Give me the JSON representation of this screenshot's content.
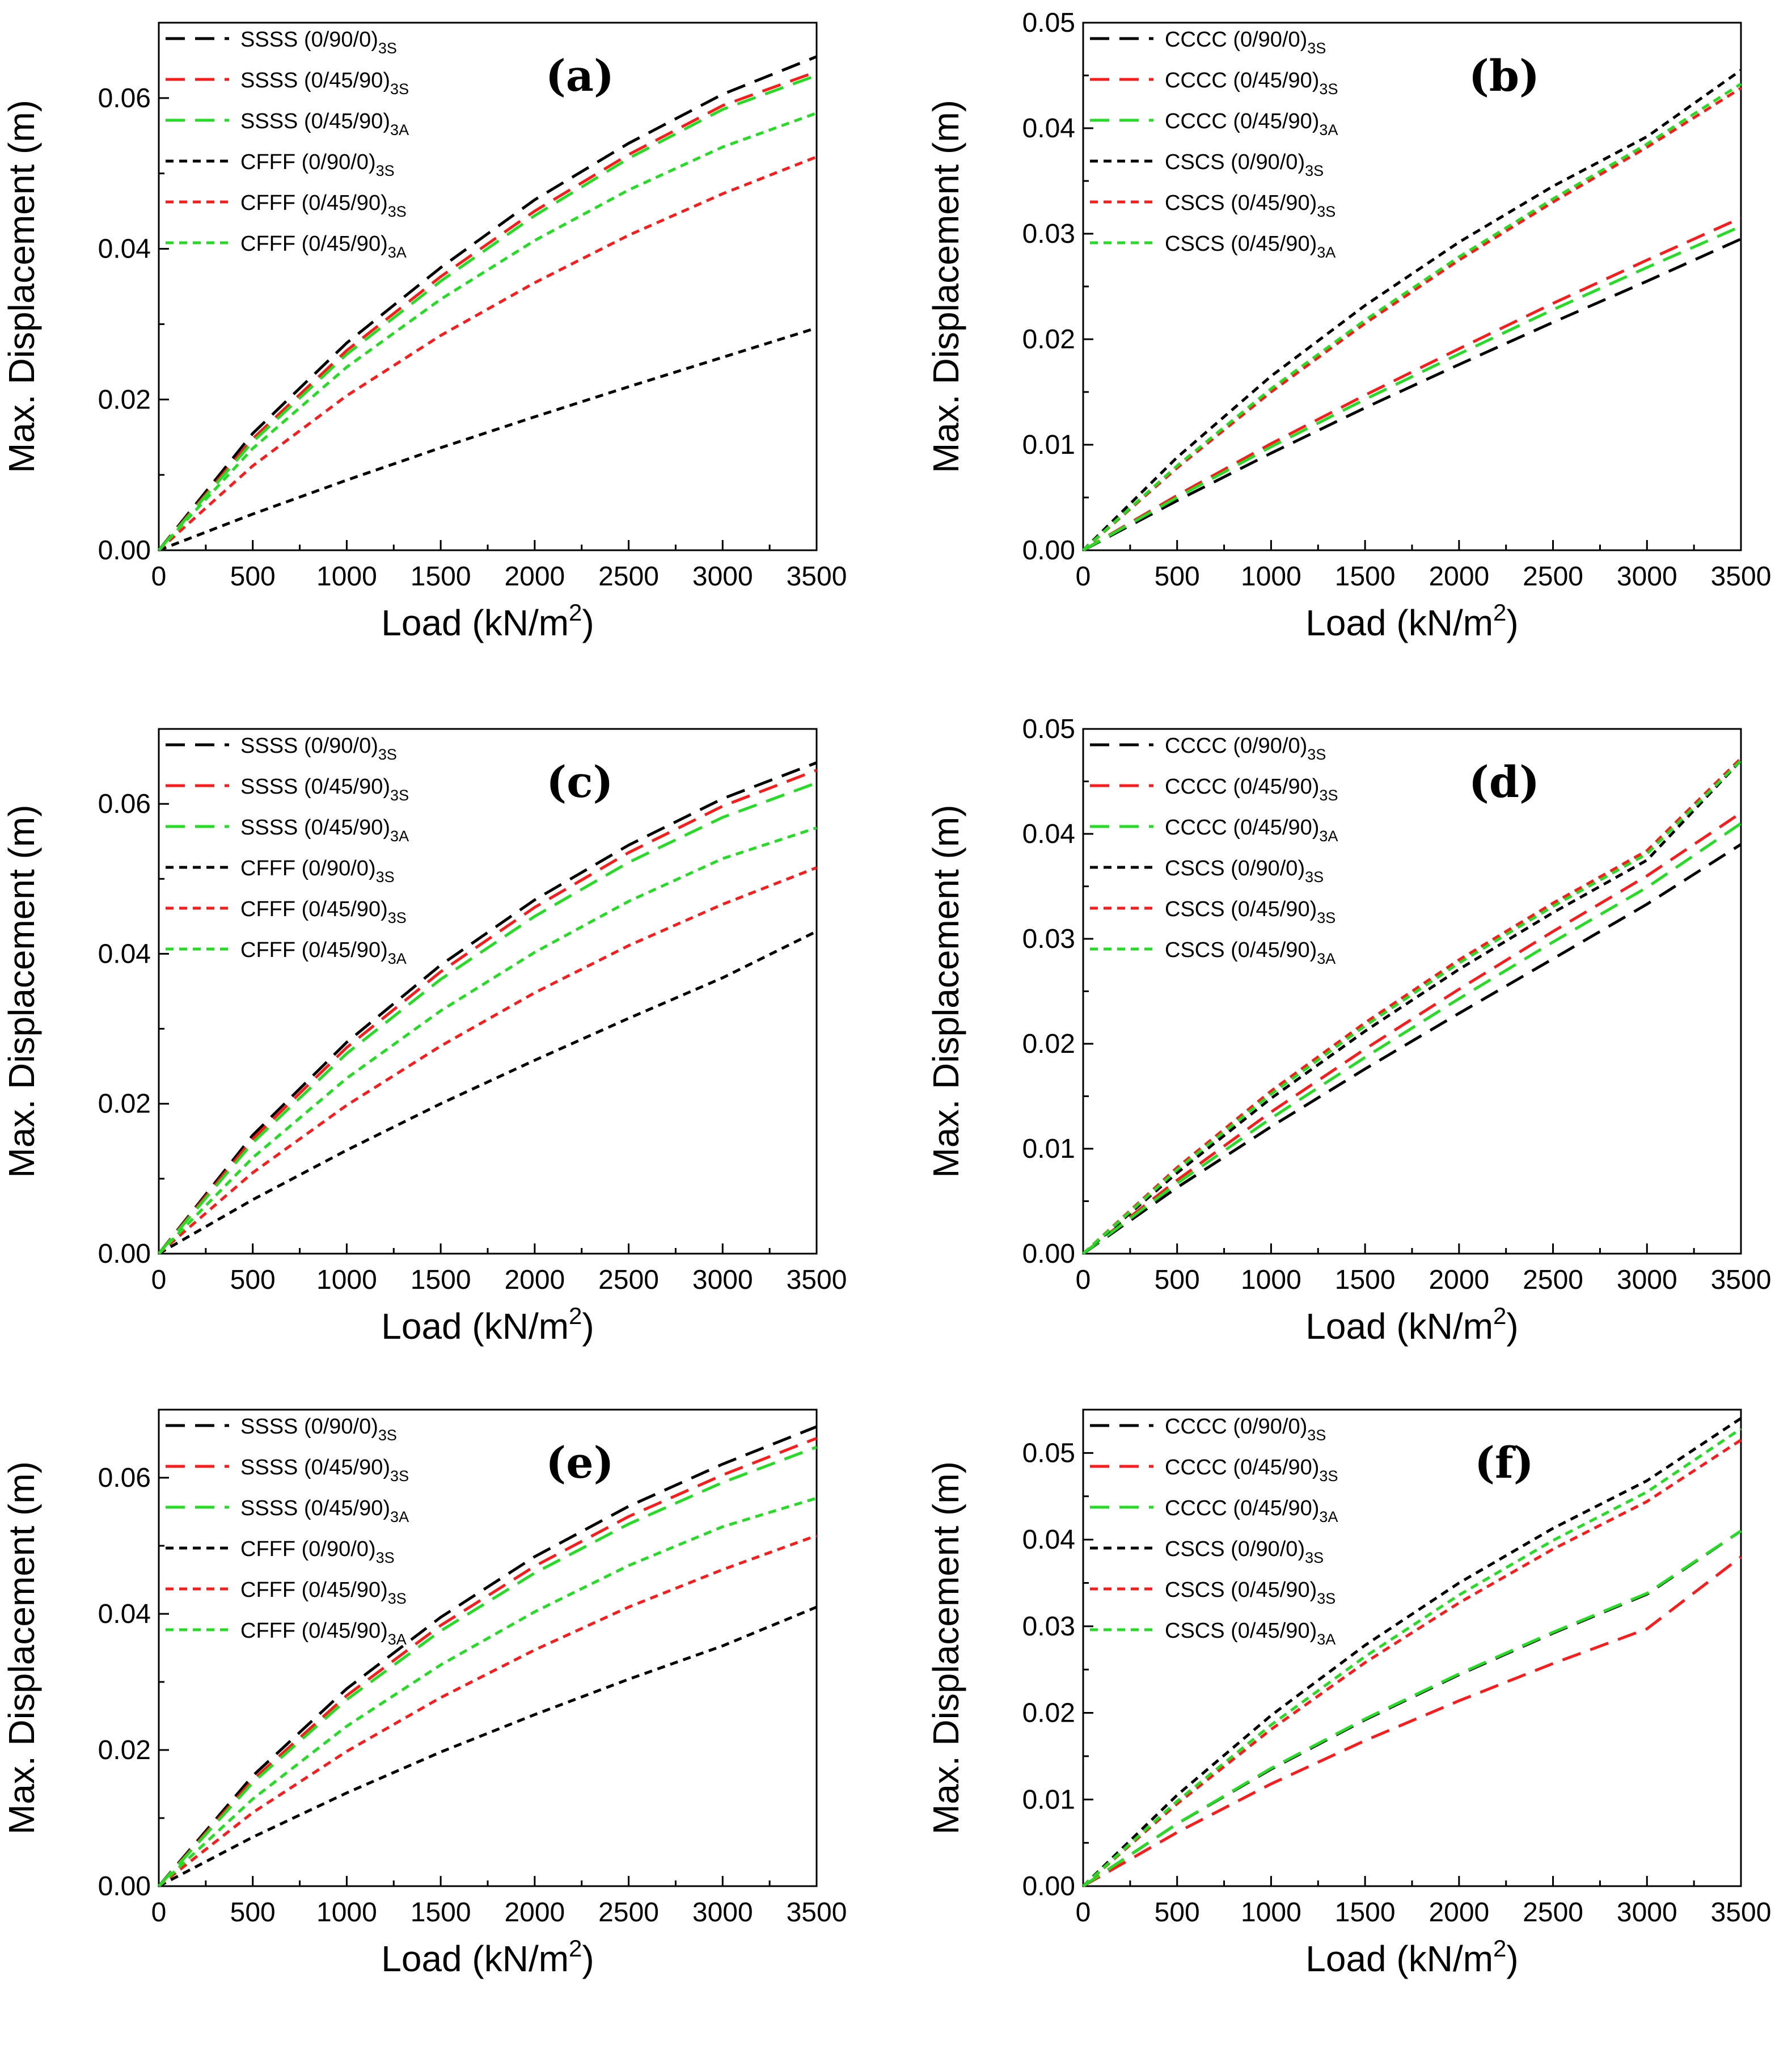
{
  "colors": {
    "black": "#000000",
    "red": "#ff1a1a",
    "green": "#22dd22"
  },
  "chart_data": [
    {
      "type": "line",
      "panel_label": "(a)",
      "xlabel": "Load (kN/m",
      "xlabel_sup": "2",
      "xlabel_tail": ")",
      "ylabel": "Max. Displacement (m)",
      "xlim": [
        0,
        3500
      ],
      "ylim": [
        0,
        0.07
      ],
      "xticks": [
        0,
        500,
        1000,
        1500,
        2000,
        2500,
        3000,
        3500
      ],
      "xtick_labels": [
        "0",
        "500",
        "1000",
        "1500",
        "2000",
        "2500",
        "3000",
        "3500"
      ],
      "yticks": [
        0,
        0.02,
        0.04,
        0.06
      ],
      "ytick_labels": [
        "0.00",
        "0.02",
        "0.04",
        "0.06"
      ],
      "x": [
        0,
        500,
        1000,
        1500,
        2000,
        2500,
        3000,
        3500
      ],
      "series": [
        {
          "name": "SSSS (0/90/0)",
          "sub": "3S",
          "color": "black",
          "dash": "long",
          "values": [
            0,
            0.0155,
            0.0275,
            0.0375,
            0.0465,
            0.054,
            0.0605,
            0.0655
          ]
        },
        {
          "name": "SSSS (0/45/90)",
          "sub": "3S",
          "color": "red",
          "dash": "long",
          "values": [
            0,
            0.0148,
            0.0265,
            0.0363,
            0.045,
            0.0525,
            0.059,
            0.0635
          ]
        },
        {
          "name": "SSSS (0/45/90)",
          "sub": "3A",
          "color": "green",
          "dash": "long",
          "values": [
            0,
            0.0144,
            0.026,
            0.0357,
            0.0444,
            0.052,
            0.0585,
            0.063
          ]
        },
        {
          "name": "CFFF (0/90/0)",
          "sub": "3S",
          "color": "black",
          "dash": "short",
          "values": [
            0,
            0.0048,
            0.0093,
            0.0136,
            0.0177,
            0.0217,
            0.0256,
            0.0295
          ]
        },
        {
          "name": "CFFF (0/45/90)",
          "sub": "3S",
          "color": "red",
          "dash": "short",
          "values": [
            0,
            0.0112,
            0.0205,
            0.0285,
            0.0355,
            0.0418,
            0.0473,
            0.0522
          ]
        },
        {
          "name": "CFFF (0/45/90)",
          "sub": "3A",
          "color": "green",
          "dash": "short",
          "values": [
            0,
            0.0135,
            0.0243,
            0.0333,
            0.0411,
            0.0478,
            0.0535,
            0.058
          ]
        }
      ]
    },
    {
      "type": "line",
      "panel_label": "(b)",
      "xlabel": "Load (kN/m",
      "xlabel_sup": "2",
      "xlabel_tail": ")",
      "ylabel": "Max. Displacement (m)",
      "xlim": [
        0,
        3500
      ],
      "ylim": [
        0,
        0.05
      ],
      "xticks": [
        0,
        500,
        1000,
        1500,
        2000,
        2500,
        3000,
        3500
      ],
      "xtick_labels": [
        "0",
        "500",
        "1000",
        "1500",
        "2000",
        "2500",
        "3000",
        "3500"
      ],
      "yticks": [
        0,
        0.01,
        0.02,
        0.03,
        0.04,
        0.05
      ],
      "ytick_labels": [
        "0.00",
        "0.01",
        "0.02",
        "0.03",
        "0.04",
        "0.05"
      ],
      "x": [
        0,
        500,
        1000,
        1500,
        2000,
        2500,
        3000,
        3500
      ],
      "series": [
        {
          "name": "CCCC (0/90/0)",
          "sub": "3S",
          "color": "black",
          "dash": "long",
          "values": [
            0,
            0.0047,
            0.0092,
            0.0135,
            0.0176,
            0.0216,
            0.0255,
            0.0295
          ]
        },
        {
          "name": "CCCC (0/45/90)",
          "sub": "3S",
          "color": "red",
          "dash": "long",
          "values": [
            0,
            0.0052,
            0.0101,
            0.0147,
            0.0191,
            0.0234,
            0.0275,
            0.0315
          ]
        },
        {
          "name": "CCCC (0/45/90)",
          "sub": "3A",
          "color": "green",
          "dash": "long",
          "values": [
            0,
            0.005,
            0.0098,
            0.0143,
            0.0186,
            0.0228,
            0.0268,
            0.0307
          ]
        },
        {
          "name": "CSCS (0/90/0)",
          "sub": "3S",
          "color": "black",
          "dash": "short",
          "values": [
            0,
            0.0088,
            0.0165,
            0.0232,
            0.0292,
            0.0345,
            0.0392,
            0.0455
          ]
        },
        {
          "name": "CSCS (0/45/90)",
          "sub": "3S",
          "color": "red",
          "dash": "short",
          "values": [
            0,
            0.0078,
            0.015,
            0.0215,
            0.0275,
            0.033,
            0.0382,
            0.0438
          ]
        },
        {
          "name": "CSCS (0/45/90)",
          "sub": "3A",
          "color": "green",
          "dash": "short",
          "values": [
            0,
            0.008,
            0.0153,
            0.0218,
            0.0278,
            0.0333,
            0.0385,
            0.0442
          ]
        }
      ]
    },
    {
      "type": "line",
      "panel_label": "(c)",
      "xlabel": "Load (kN/m",
      "xlabel_sup": "2",
      "xlabel_tail": ")",
      "ylabel": "Max. Displacement (m)",
      "xlim": [
        0,
        3500
      ],
      "ylim": [
        0,
        0.07
      ],
      "xticks": [
        0,
        500,
        1000,
        1500,
        2000,
        2500,
        3000,
        3500
      ],
      "xtick_labels": [
        "0",
        "500",
        "1000",
        "1500",
        "2000",
        "2500",
        "3000",
        "3500"
      ],
      "yticks": [
        0,
        0.02,
        0.04,
        0.06
      ],
      "ytick_labels": [
        "0.00",
        "0.02",
        "0.04",
        "0.06"
      ],
      "x": [
        0,
        500,
        1000,
        1500,
        2000,
        2500,
        3000,
        3500
      ],
      "series": [
        {
          "name": "SSSS (0/90/0)",
          "sub": "3S",
          "color": "black",
          "dash": "long",
          "values": [
            0,
            0.0158,
            0.0282,
            0.0385,
            0.0472,
            0.0545,
            0.0607,
            0.0655
          ]
        },
        {
          "name": "SSSS (0/45/90)",
          "sub": "3S",
          "color": "red",
          "dash": "long",
          "values": [
            0,
            0.0153,
            0.0275,
            0.0376,
            0.0462,
            0.0535,
            0.0597,
            0.0645
          ]
        },
        {
          "name": "SSSS (0/45/90)",
          "sub": "3A",
          "color": "green",
          "dash": "long",
          "values": [
            0,
            0.0148,
            0.0267,
            0.0366,
            0.045,
            0.0522,
            0.0582,
            0.0628
          ]
        },
        {
          "name": "CFFF (0/90/0)",
          "sub": "3S",
          "color": "black",
          "dash": "short",
          "values": [
            0,
            0.0072,
            0.0138,
            0.02,
            0.0258,
            0.0314,
            0.0368,
            0.043
          ]
        },
        {
          "name": "CFFF (0/45/90)",
          "sub": "3S",
          "color": "red",
          "dash": "short",
          "values": [
            0,
            0.0108,
            0.0198,
            0.0277,
            0.0348,
            0.0411,
            0.0466,
            0.0515
          ]
        },
        {
          "name": "CFFF (0/45/90)",
          "sub": "3A",
          "color": "green",
          "dash": "short",
          "values": [
            0,
            0.0128,
            0.0234,
            0.0324,
            0.0402,
            0.047,
            0.0527,
            0.0568
          ]
        }
      ]
    },
    {
      "type": "line",
      "panel_label": "(d)",
      "xlabel": "Load (kN/m",
      "xlabel_sup": "2",
      "xlabel_tail": ")",
      "ylabel": "Max. Displacement (m)",
      "xlim": [
        0,
        3500
      ],
      "ylim": [
        0,
        0.05
      ],
      "xticks": [
        0,
        500,
        1000,
        1500,
        2000,
        2500,
        3000,
        3500
      ],
      "xtick_labels": [
        "0",
        "500",
        "1000",
        "1500",
        "2000",
        "2500",
        "3000",
        "3500"
      ],
      "yticks": [
        0,
        0.01,
        0.02,
        0.03,
        0.04,
        0.05
      ],
      "ytick_labels": [
        "0.00",
        "0.01",
        "0.02",
        "0.03",
        "0.04",
        "0.05"
      ],
      "x": [
        0,
        500,
        1000,
        1500,
        2000,
        2500,
        3000,
        3500
      ],
      "series": [
        {
          "name": "CCCC (0/90/0)",
          "sub": "3S",
          "color": "black",
          "dash": "long",
          "values": [
            0,
            0.0063,
            0.0121,
            0.0176,
            0.0229,
            0.0281,
            0.0333,
            0.039
          ]
        },
        {
          "name": "CCCC (0/45/90)",
          "sub": "3S",
          "color": "red",
          "dash": "long",
          "values": [
            0,
            0.007,
            0.0135,
            0.0195,
            0.0252,
            0.0307,
            0.036,
            0.042
          ]
        },
        {
          "name": "CCCC (0/45/90)",
          "sub": "3A",
          "color": "green",
          "dash": "long",
          "values": [
            0,
            0.0067,
            0.0129,
            0.0187,
            0.0243,
            0.0297,
            0.0349,
            0.041
          ]
        },
        {
          "name": "CSCS (0/90/0)",
          "sub": "3S",
          "color": "black",
          "dash": "short",
          "values": [
            0,
            0.0077,
            0.0148,
            0.0212,
            0.0271,
            0.0325,
            0.0375,
            0.047
          ]
        },
        {
          "name": "CSCS (0/45/90)",
          "sub": "3S",
          "color": "red",
          "dash": "short",
          "values": [
            0,
            0.0082,
            0.0155,
            0.022,
            0.028,
            0.0334,
            0.0384,
            0.0472
          ]
        },
        {
          "name": "CSCS (0/45/90)",
          "sub": "3A",
          "color": "green",
          "dash": "short",
          "values": [
            0,
            0.008,
            0.0152,
            0.0217,
            0.0277,
            0.0331,
            0.0381,
            0.047
          ]
        }
      ]
    },
    {
      "type": "line",
      "panel_label": "(e)",
      "xlabel": "Load (kN/m",
      "xlabel_sup": "2",
      "xlabel_tail": ")",
      "ylabel": "Max. Displacement (m)",
      "xlim": [
        0,
        3500
      ],
      "ylim": [
        0,
        0.07
      ],
      "xticks": [
        0,
        500,
        1000,
        1500,
        2000,
        2500,
        3000,
        3500
      ],
      "xtick_labels": [
        "0",
        "500",
        "1000",
        "1500",
        "2000",
        "2500",
        "3000",
        "3500"
      ],
      "yticks": [
        0,
        0.02,
        0.04,
        0.06
      ],
      "ytick_labels": [
        "0.00",
        "0.02",
        "0.04",
        "0.06"
      ],
      "x": [
        0,
        500,
        1000,
        1500,
        2000,
        2500,
        3000,
        3500
      ],
      "series": [
        {
          "name": "SSSS (0/90/0)",
          "sub": "3S",
          "color": "black",
          "dash": "long",
          "values": [
            0,
            0.0162,
            0.029,
            0.0395,
            0.0484,
            0.0558,
            0.062,
            0.0675
          ]
        },
        {
          "name": "SSSS (0/45/90)",
          "sub": "3S",
          "color": "red",
          "dash": "long",
          "values": [
            0,
            0.0156,
            0.028,
            0.0383,
            0.047,
            0.0543,
            0.0604,
            0.0658
          ]
        },
        {
          "name": "SSSS (0/45/90)",
          "sub": "3A",
          "color": "green",
          "dash": "long",
          "values": [
            0,
            0.0152,
            0.0274,
            0.0375,
            0.046,
            0.0532,
            0.0593,
            0.0645
          ]
        },
        {
          "name": "CFFF (0/90/0)",
          "sub": "3S",
          "color": "black",
          "dash": "short",
          "values": [
            0,
            0.0072,
            0.0137,
            0.0197,
            0.0252,
            0.0304,
            0.0353,
            0.041
          ]
        },
        {
          "name": "CFFF (0/45/90)",
          "sub": "3S",
          "color": "red",
          "dash": "short",
          "values": [
            0,
            0.0108,
            0.0198,
            0.0277,
            0.0347,
            0.041,
            0.0465,
            0.0515
          ]
        },
        {
          "name": "CFFF (0/45/90)",
          "sub": "3A",
          "color": "green",
          "dash": "short",
          "values": [
            0,
            0.0128,
            0.0235,
            0.0325,
            0.0403,
            0.0471,
            0.0528,
            0.057
          ]
        }
      ]
    },
    {
      "type": "line",
      "panel_label": "(f)",
      "xlabel": "Load (kN/m",
      "xlabel_sup": "2",
      "xlabel_tail": ")",
      "ylabel": "Max. Displacement (m)",
      "xlim": [
        0,
        3500
      ],
      "ylim": [
        0,
        0.055
      ],
      "xticks": [
        0,
        500,
        1000,
        1500,
        2000,
        2500,
        3000,
        3500
      ],
      "xtick_labels": [
        "0",
        "500",
        "1000",
        "1500",
        "2000",
        "2500",
        "3000",
        "3500"
      ],
      "yticks": [
        0,
        0.01,
        0.02,
        0.03,
        0.04,
        0.05
      ],
      "ytick_labels": [
        "0.00",
        "0.01",
        "0.02",
        "0.03",
        "0.04",
        "0.05"
      ],
      "x": [
        0,
        500,
        1000,
        1500,
        2000,
        2500,
        3000,
        3500
      ],
      "series": [
        {
          "name": "CCCC (0/90/0)",
          "sub": "3S",
          "color": "black",
          "dash": "long",
          "values": [
            0,
            0.0072,
            0.0135,
            0.0192,
            0.0244,
            0.0292,
            0.0337,
            0.041
          ]
        },
        {
          "name": "CCCC (0/45/90)",
          "sub": "3S",
          "color": "red",
          "dash": "long",
          "values": [
            0,
            0.0062,
            0.0118,
            0.0168,
            0.0214,
            0.0257,
            0.0297,
            0.038
          ]
        },
        {
          "name": "CCCC (0/45/90)",
          "sub": "3A",
          "color": "green",
          "dash": "long",
          "values": [
            0,
            0.0072,
            0.0136,
            0.0193,
            0.0245,
            0.0293,
            0.0338,
            0.041
          ]
        },
        {
          "name": "CSCS (0/90/0)",
          "sub": "3S",
          "color": "black",
          "dash": "short",
          "values": [
            0,
            0.0105,
            0.0197,
            0.0278,
            0.035,
            0.0413,
            0.0468,
            0.054
          ]
        },
        {
          "name": "CSCS (0/45/90)",
          "sub": "3S",
          "color": "red",
          "dash": "short",
          "values": [
            0,
            0.0095,
            0.0181,
            0.0258,
            0.0327,
            0.0389,
            0.0444,
            0.0515
          ]
        },
        {
          "name": "CSCS (0/45/90)",
          "sub": "3A",
          "color": "green",
          "dash": "short",
          "values": [
            0,
            0.0098,
            0.0186,
            0.0265,
            0.0336,
            0.0399,
            0.0455,
            0.0528
          ]
        }
      ]
    }
  ]
}
